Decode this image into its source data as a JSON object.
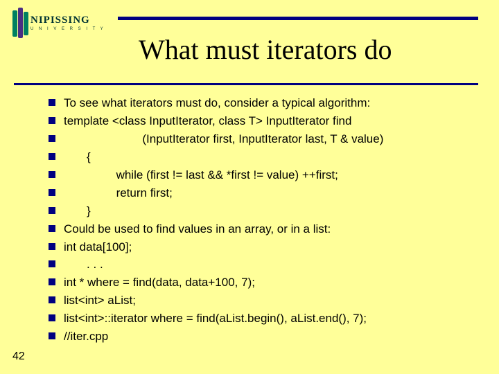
{
  "colors": {
    "background": "#ffff99",
    "rule": "#000080",
    "text": "#000000",
    "title": "#000000",
    "bullet": "#000080",
    "logo_green": "#008060",
    "logo_purple": "#4b2e83",
    "logo_text": "#003333"
  },
  "style": {
    "title_fontsize": 40,
    "body_fontsize": 17,
    "bullet_size": 10,
    "rule1_height": 5,
    "rule2_height": 3
  },
  "logo": {
    "main": "NIPISSING",
    "sub": "U N I V E R S I T Y"
  },
  "title": "What must iterators do",
  "lines": [
    "To see what iterators must do, consider a typical algorithm:",
    "template <class InputIterator, class T> InputIterator find",
    "                        (InputIterator first, InputIterator last, T & value)",
    "       {",
    "                while (first != last && *first != value) ++first;",
    "                return first;",
    "       }",
    "Could be used to find values in an array, or in a list:",
    "int data[100];",
    "       . . .",
    "int * where = find(data, data+100, 7);",
    "list<int> aList;",
    "list<int>::iterator where = find(aList.begin(), aList.end(), 7);",
    "//iter.cpp"
  ],
  "slide_number": "42"
}
